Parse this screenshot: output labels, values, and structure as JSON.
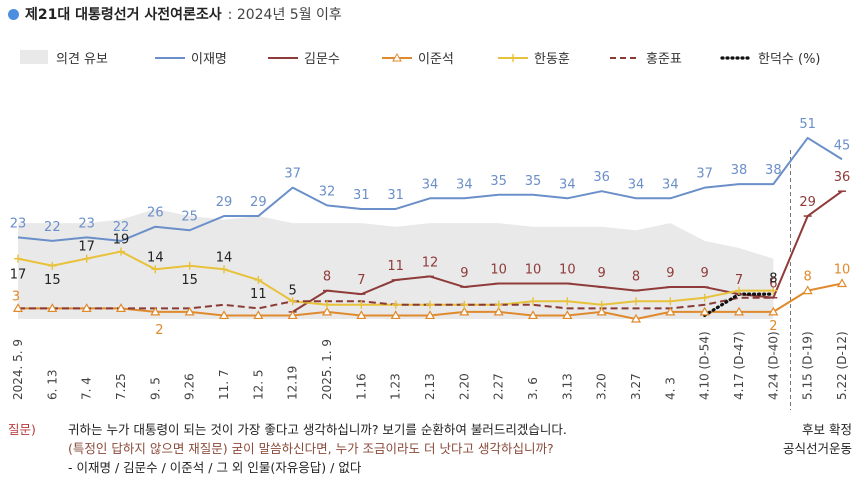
{
  "header": {
    "title": "제21대 대통령선거 사전여론조사",
    "subtitle": ": 2024년 5월 이후"
  },
  "question": {
    "label": "질문)",
    "line1": "귀하는 누가 대통령이 되는 것이 가장 좋다고 생각하십니까? 보기를 순환하여 불러드리겠습니다.",
    "line2": "(특정인 답하지 않으면 재질문) 굳이 말씀하신다면, 누가 조금이라도 더 낫다고 생각하십니까?",
    "line3": "- 이재명 / 김문수 / 이준석 / 그 외 인물(자유응답) / 없다"
  },
  "note": {
    "line1": "후보 확정",
    "line2": "공식선거운동"
  },
  "chart_data": {
    "type": "line",
    "categories": [
      "2024. 5. 9",
      "6. 13",
      "7. 4",
      "7.25",
      "9. 5",
      "9.26",
      "11. 7",
      "12. 5",
      "12.19",
      "2025. 1. 9",
      "1.16",
      "1.23",
      "2.13",
      "2.20",
      "2.27",
      "3. 6",
      "3.13",
      "3.20",
      "3.27",
      "4. 3",
      "4.10 (D-54)",
      "4.17 (D-47)",
      "4.24 (D-40)",
      "5.15 (D-19)",
      "5.22 (D-12)"
    ],
    "legend_placement": "top",
    "legend_unit": "(%)",
    "ylim": [
      0,
      55
    ],
    "series": [
      {
        "name": "의견 유보",
        "type": "area",
        "color": "#e9e9e9",
        "values": [
          27,
          27,
          27,
          28,
          31,
          29,
          28,
          29,
          27,
          27,
          27,
          26,
          27,
          27,
          27,
          26,
          26,
          26,
          25,
          27,
          22,
          20,
          17,
          null,
          null
        ]
      },
      {
        "name": "이재명",
        "color": "#6b8fc9",
        "values": [
          23,
          22,
          23,
          22,
          26,
          25,
          29,
          29,
          37,
          32,
          31,
          31,
          34,
          34,
          35,
          35,
          34,
          36,
          34,
          34,
          37,
          38,
          38,
          51,
          45
        ],
        "labels": [
          "23",
          "22",
          "23",
          "22",
          "26",
          "25",
          "29",
          "29",
          "37",
          "32",
          "31",
          "31",
          "34",
          "34",
          "35",
          "35",
          "34",
          "36",
          "34",
          "34",
          "37",
          "38",
          "38",
          "51",
          "45"
        ]
      },
      {
        "name": "김문수",
        "color": "#8e3b3a",
        "values": [
          null,
          null,
          null,
          null,
          null,
          null,
          null,
          null,
          2,
          8,
          7,
          11,
          12,
          9,
          10,
          10,
          10,
          9,
          8,
          9,
          9,
          7,
          6,
          29,
          36
        ],
        "labels": [
          "",
          "",
          "",
          "",
          "",
          "",
          "",
          "",
          "",
          "8",
          "7",
          "11",
          "12",
          "9",
          "10",
          "10",
          "10",
          "9",
          "8",
          "9",
          "9",
          "7",
          "6",
          "29",
          "36"
        ]
      },
      {
        "name": "이준석",
        "color": "#e08a2e",
        "values": [
          3,
          3,
          3,
          3,
          2,
          2,
          1,
          1,
          1,
          2,
          1,
          1,
          1,
          2,
          2,
          1,
          1,
          2,
          0,
          2,
          2,
          2,
          2,
          8,
          10
        ],
        "labels": [
          "3",
          "",
          "",
          "",
          "2",
          "",
          "",
          "",
          "",
          "",
          "",
          "",
          "",
          "",
          "",
          "",
          "",
          "",
          "",
          "",
          "",
          "",
          "2",
          "8",
          "10"
        ]
      },
      {
        "name": "한동훈",
        "color": "#e8c23a",
        "values": [
          17,
          15,
          17,
          19,
          14,
          15,
          14,
          11,
          5,
          4,
          4,
          4,
          4,
          4,
          4,
          5,
          5,
          4,
          5,
          5,
          6,
          8,
          8,
          null,
          null
        ],
        "labels": [
          "17",
          "15",
          "17",
          "19",
          "14",
          "15",
          "14",
          "11",
          "5",
          "",
          "",
          "",
          "",
          "",
          "",
          "",
          "",
          "",
          "",
          "",
          "",
          "",
          "8",
          "",
          ""
        ]
      },
      {
        "name": "홍준표",
        "color": "#8a3b36",
        "dash": true,
        "values": [
          3,
          3,
          3,
          3,
          3,
          3,
          4,
          3,
          5,
          5,
          5,
          4,
          4,
          4,
          4,
          4,
          3,
          3,
          3,
          3,
          4,
          6,
          6,
          null,
          null
        ],
        "labels": []
      },
      {
        "name": "한덕수",
        "color": "#111111",
        "dotted": true,
        "values": [
          null,
          null,
          null,
          null,
          null,
          null,
          null,
          null,
          null,
          null,
          null,
          null,
          null,
          null,
          null,
          null,
          null,
          null,
          null,
          null,
          1,
          7,
          7,
          null,
          null
        ],
        "labels": []
      }
    ]
  }
}
